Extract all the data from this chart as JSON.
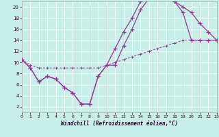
{
  "background_color": "#c8eee8",
  "grid_color": "#b0ddd6",
  "line_color": "#993399",
  "xlabel": "Windchill (Refroidissement éolien,°C)",
  "xlim": [
    0,
    23
  ],
  "ylim": [
    1,
    21
  ],
  "ytick_vals": [
    2,
    4,
    6,
    8,
    10,
    12,
    14,
    16,
    18,
    20
  ],
  "xtick_vals": [
    0,
    1,
    2,
    3,
    4,
    5,
    6,
    7,
    8,
    9,
    10,
    11,
    12,
    13,
    14,
    15,
    16,
    17,
    18,
    19,
    20,
    21,
    22,
    23
  ],
  "line1_x": [
    0,
    1,
    2,
    3,
    4,
    5,
    6,
    7,
    8,
    9,
    10,
    11,
    12,
    13,
    14,
    15,
    16,
    17,
    18,
    19,
    20,
    21,
    22,
    23
  ],
  "line1_y": [
    10.5,
    9.0,
    6.5,
    7.5,
    7.0,
    5.5,
    4.5,
    2.5,
    2.5,
    7.5,
    9.5,
    9.5,
    13.0,
    16.0,
    19.5,
    21.5,
    21.5,
    21.5,
    21.0,
    20.0,
    19.0,
    17.0,
    15.5,
    14.0
  ],
  "line2_x": [
    0,
    1,
    2,
    3,
    4,
    5,
    6,
    7,
    8,
    9,
    10,
    11,
    12,
    13,
    14,
    15,
    16,
    17,
    18,
    19,
    20,
    21,
    22,
    23
  ],
  "line2_y": [
    10.5,
    9.0,
    6.5,
    7.5,
    7.0,
    5.5,
    4.5,
    2.5,
    2.5,
    7.5,
    9.5,
    12.5,
    15.5,
    18.0,
    21.0,
    21.5,
    21.5,
    21.5,
    21.0,
    19.0,
    14.0,
    14.0,
    14.0,
    14.0
  ],
  "line3_x": [
    0,
    1,
    2,
    3,
    4,
    5,
    6,
    7,
    8,
    9,
    10,
    11,
    12,
    13,
    14,
    15,
    16,
    17,
    18,
    19,
    20,
    21,
    22,
    23
  ],
  "line3_y": [
    10.5,
    9.5,
    9.0,
    9.0,
    9.0,
    9.0,
    9.0,
    9.0,
    9.0,
    9.0,
    9.5,
    10.0,
    10.5,
    11.0,
    11.5,
    12.0,
    12.5,
    13.0,
    13.5,
    14.0,
    14.0,
    14.0,
    14.0,
    14.0
  ]
}
